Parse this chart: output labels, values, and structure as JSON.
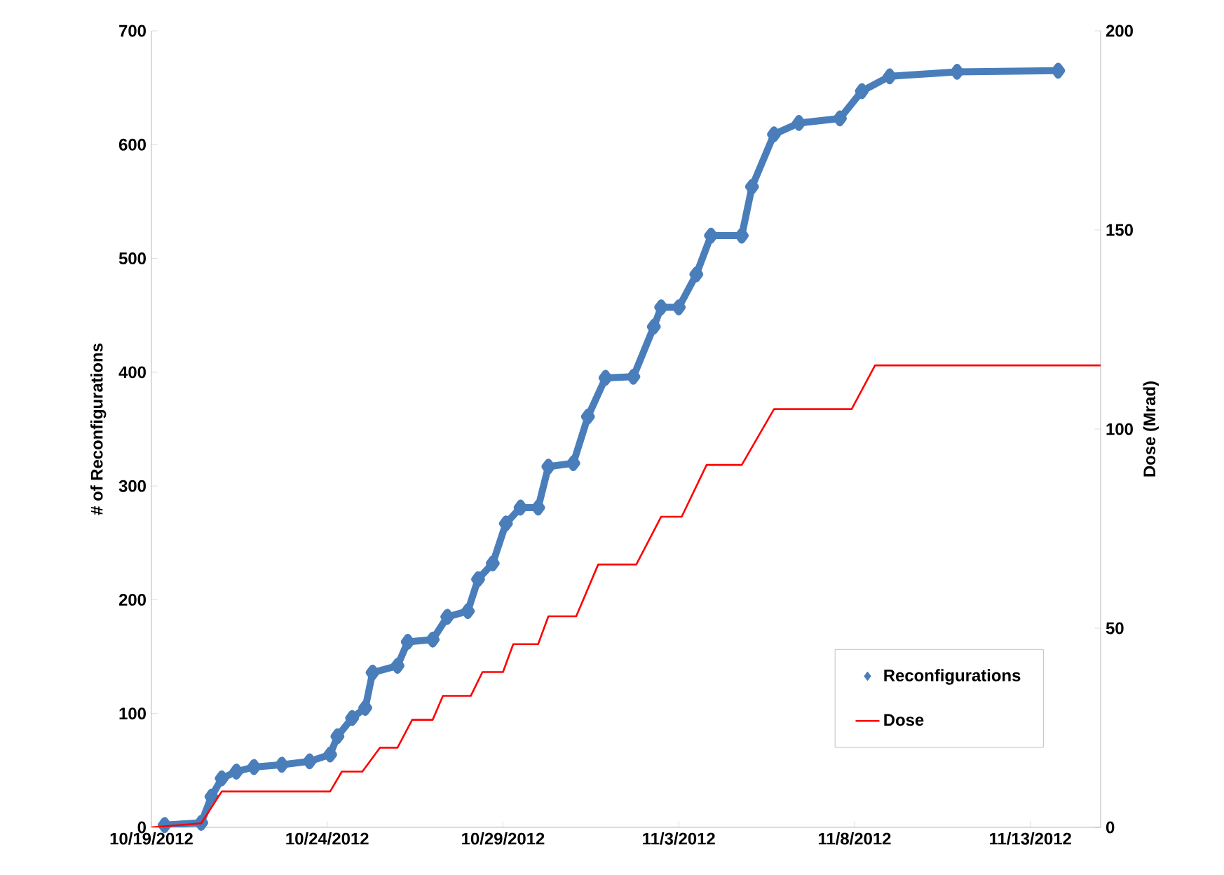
{
  "chart_data": {
    "type": "line",
    "ylabel": "# of Reconfigurations",
    "y2label": "Dose (Mrad)",
    "xlim": [
      "2012-10-19",
      "2012-11-15"
    ],
    "xticks": [
      {
        "value": "2012-10-19",
        "label": "10/19/2012"
      },
      {
        "value": "2012-10-24",
        "label": "10/24/2012"
      },
      {
        "value": "2012-10-29",
        "label": "10/29/2012"
      },
      {
        "value": "2012-11-03",
        "label": "11/3/2012"
      },
      {
        "value": "2012-11-08",
        "label": "11/8/2012"
      },
      {
        "value": "2012-11-13",
        "label": "11/13/2012"
      }
    ],
    "ylim": [
      0,
      700
    ],
    "yticks": [
      0,
      100,
      200,
      300,
      400,
      500,
      600,
      700
    ],
    "y2lim": [
      0,
      200
    ],
    "y2ticks": [
      0,
      50,
      100,
      150,
      200
    ],
    "legend": "bottom right",
    "series": [
      {
        "name": "Reconfigurations",
        "color": "#4a7ebb",
        "marker": "diamond",
        "x": [
          "2012-10-19T09:00",
          "2012-10-20T10:00",
          "2012-10-20T17:00",
          "2012-10-21T00:00",
          "2012-10-21T10:00",
          "2012-10-21T22:00",
          "2012-10-22T17:00",
          "2012-10-23T12:00",
          "2012-10-24T02:00",
          "2012-10-24T07:00",
          "2012-10-24T17:00",
          "2012-10-25T02:00",
          "2012-10-25T07:00",
          "2012-10-26T00:00",
          "2012-10-26T07:00",
          "2012-10-27T00:00",
          "2012-10-27T10:00",
          "2012-10-28T00:00",
          "2012-10-28T07:00",
          "2012-10-28T17:00",
          "2012-10-29T02:00",
          "2012-10-29T12:00",
          "2012-10-30T00:00",
          "2012-10-30T07:00",
          "2012-10-31T00:00",
          "2012-10-31T10:00",
          "2012-10-31T22:00",
          "2012-11-01T17:00",
          "2012-11-02T07:00",
          "2012-11-02T12:00",
          "2012-11-03T00:00",
          "2012-11-03T12:00",
          "2012-11-03T22:00",
          "2012-11-04T19:00",
          "2012-11-05T02:00",
          "2012-11-05T17:00",
          "2012-11-06T10:00",
          "2012-11-07T14:00",
          "2012-11-08T05:00",
          "2012-11-09T00:00",
          "2012-11-10T22:00",
          "2012-11-13T19:00"
        ],
        "values": [
          2,
          4,
          27,
          43,
          49,
          53,
          55,
          58,
          64,
          80,
          96,
          105,
          136,
          142,
          163,
          165,
          185,
          190,
          218,
          232,
          267,
          281,
          281,
          317,
          320,
          361,
          395,
          396,
          440,
          457,
          457,
          486,
          520,
          520,
          563,
          609,
          619,
          623,
          647,
          660,
          664,
          665
        ]
      },
      {
        "name": "Dose",
        "color": "#ff0000",
        "marker": "none",
        "axis": "y2",
        "line_style": "solid",
        "x": [
          "2012-10-19T00:00",
          "2012-10-20T10:00",
          "2012-10-21T00:00",
          "2012-10-24T02:00",
          "2012-10-24T10:00",
          "2012-10-25T00:00",
          "2012-10-25T12:00",
          "2012-10-26T00:00",
          "2012-10-26T10:00",
          "2012-10-27T00:00",
          "2012-10-27T07:00",
          "2012-10-28T02:00",
          "2012-10-28T10:00",
          "2012-10-29T00:00",
          "2012-10-29T07:00",
          "2012-10-30T00:00",
          "2012-10-30T07:00",
          "2012-10-31T02:00",
          "2012-10-31T17:00",
          "2012-11-01T19:00",
          "2012-11-02T12:00",
          "2012-11-03T02:00",
          "2012-11-03T19:00",
          "2012-11-04T19:00",
          "2012-11-05T17:00",
          "2012-11-07T22:00",
          "2012-11-08T14:00",
          "2012-11-15T00:00"
        ],
        "values": [
          0,
          1,
          9,
          9,
          14,
          14,
          20,
          20,
          27,
          27,
          33,
          33,
          39,
          39,
          46,
          46,
          53,
          53,
          66,
          66,
          78,
          78,
          91,
          91,
          105,
          105,
          116,
          116
        ]
      }
    ]
  }
}
